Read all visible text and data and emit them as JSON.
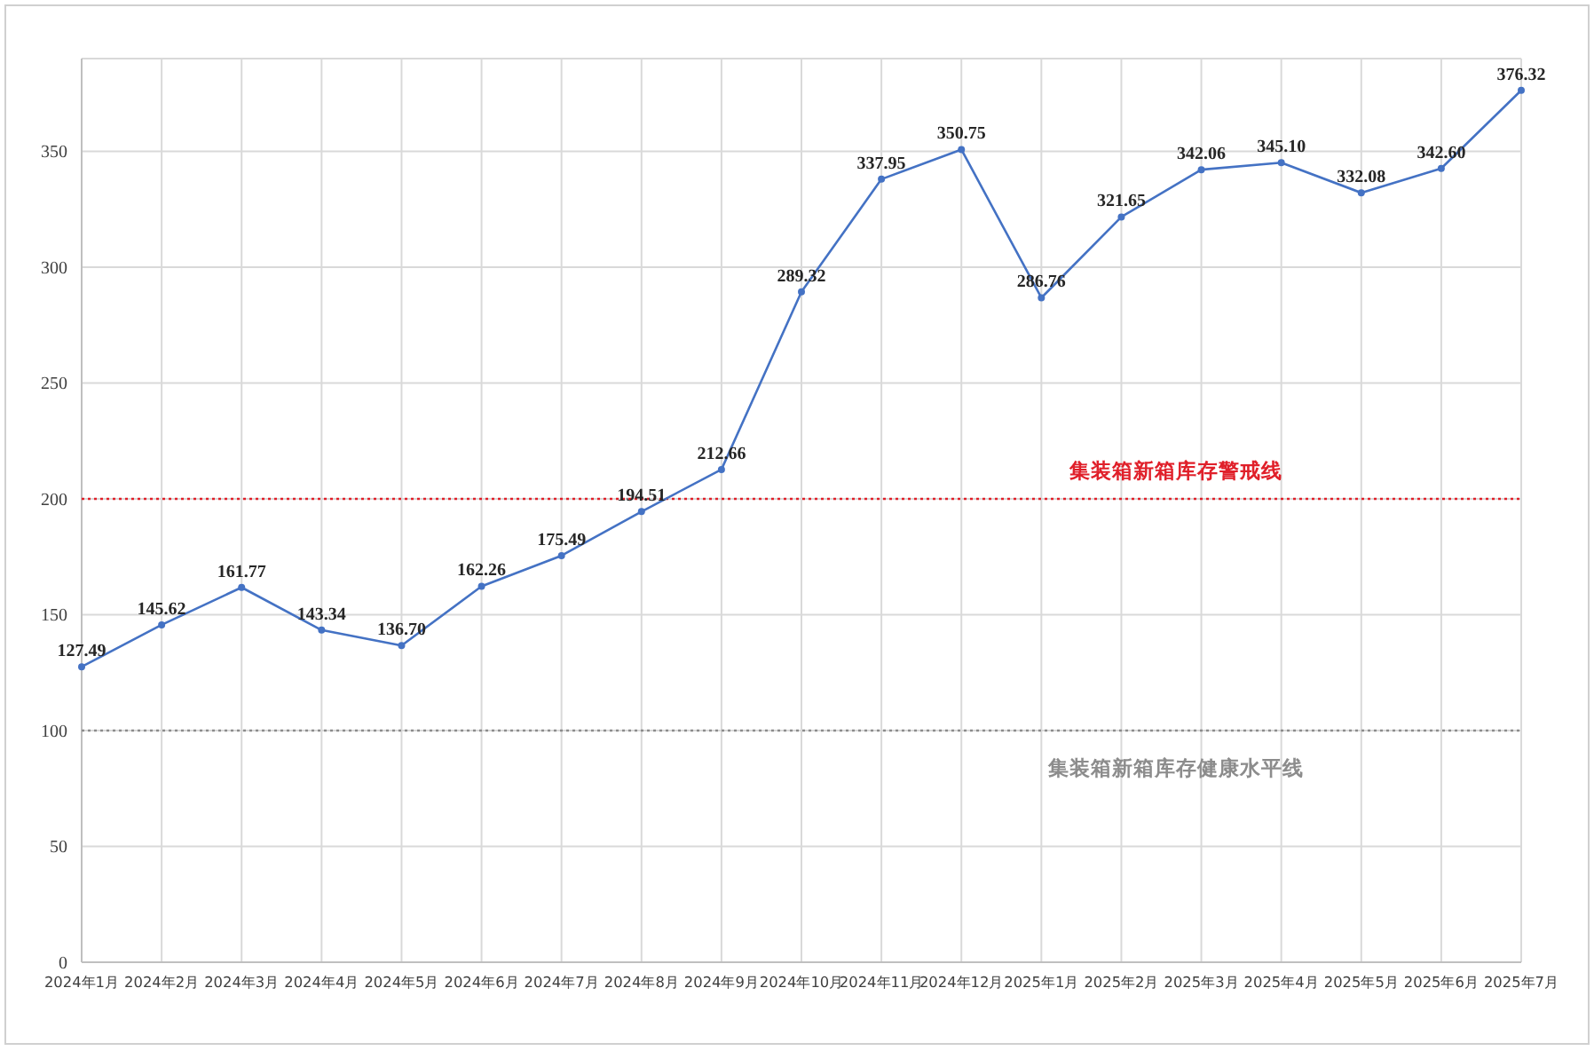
{
  "chart_data": {
    "type": "line",
    "categories": [
      "2024年1月",
      "2024年2月",
      "2024年3月",
      "2024年4月",
      "2024年5月",
      "2024年6月",
      "2024年7月",
      "2024年8月",
      "2024年9月",
      "2024年10月",
      "2024年11月",
      "2024年12月",
      "2025年1月",
      "2025年2月",
      "2025年3月",
      "2025年4月",
      "2025年5月",
      "2025年6月",
      "2025年7月"
    ],
    "values": [
      127.49,
      145.62,
      161.77,
      143.34,
      136.7,
      162.26,
      175.49,
      194.51,
      212.66,
      289.32,
      337.95,
      350.75,
      286.76,
      321.65,
      342.06,
      345.1,
      332.08,
      342.6,
      376.32
    ],
    "value_labels": [
      "127.49",
      "145.62",
      "161.77",
      "143.34",
      "136.70",
      "162.26",
      "175.49",
      "194.51",
      "212.66",
      "289.32",
      "337.95",
      "350.75",
      "286.76",
      "321.65",
      "342.06",
      "345.10",
      "332.08",
      "342.60",
      "376.32"
    ],
    "color": "#4472c4",
    "marker": "circle",
    "line_style": "solid",
    "ylim": [
      0,
      390
    ],
    "yticks": [
      0,
      50,
      100,
      150,
      200,
      250,
      300,
      350
    ],
    "grid": true,
    "ref_lines": [
      {
        "axis": "y",
        "value": 200,
        "label": "集装箱新箱库存警戒线",
        "color": "#e0202a",
        "line_style": "dotted"
      },
      {
        "axis": "y",
        "value": 100,
        "label": "集装箱新箱库存健康水平线",
        "color": "#8c8c8c",
        "line_style": "dotted"
      }
    ]
  }
}
